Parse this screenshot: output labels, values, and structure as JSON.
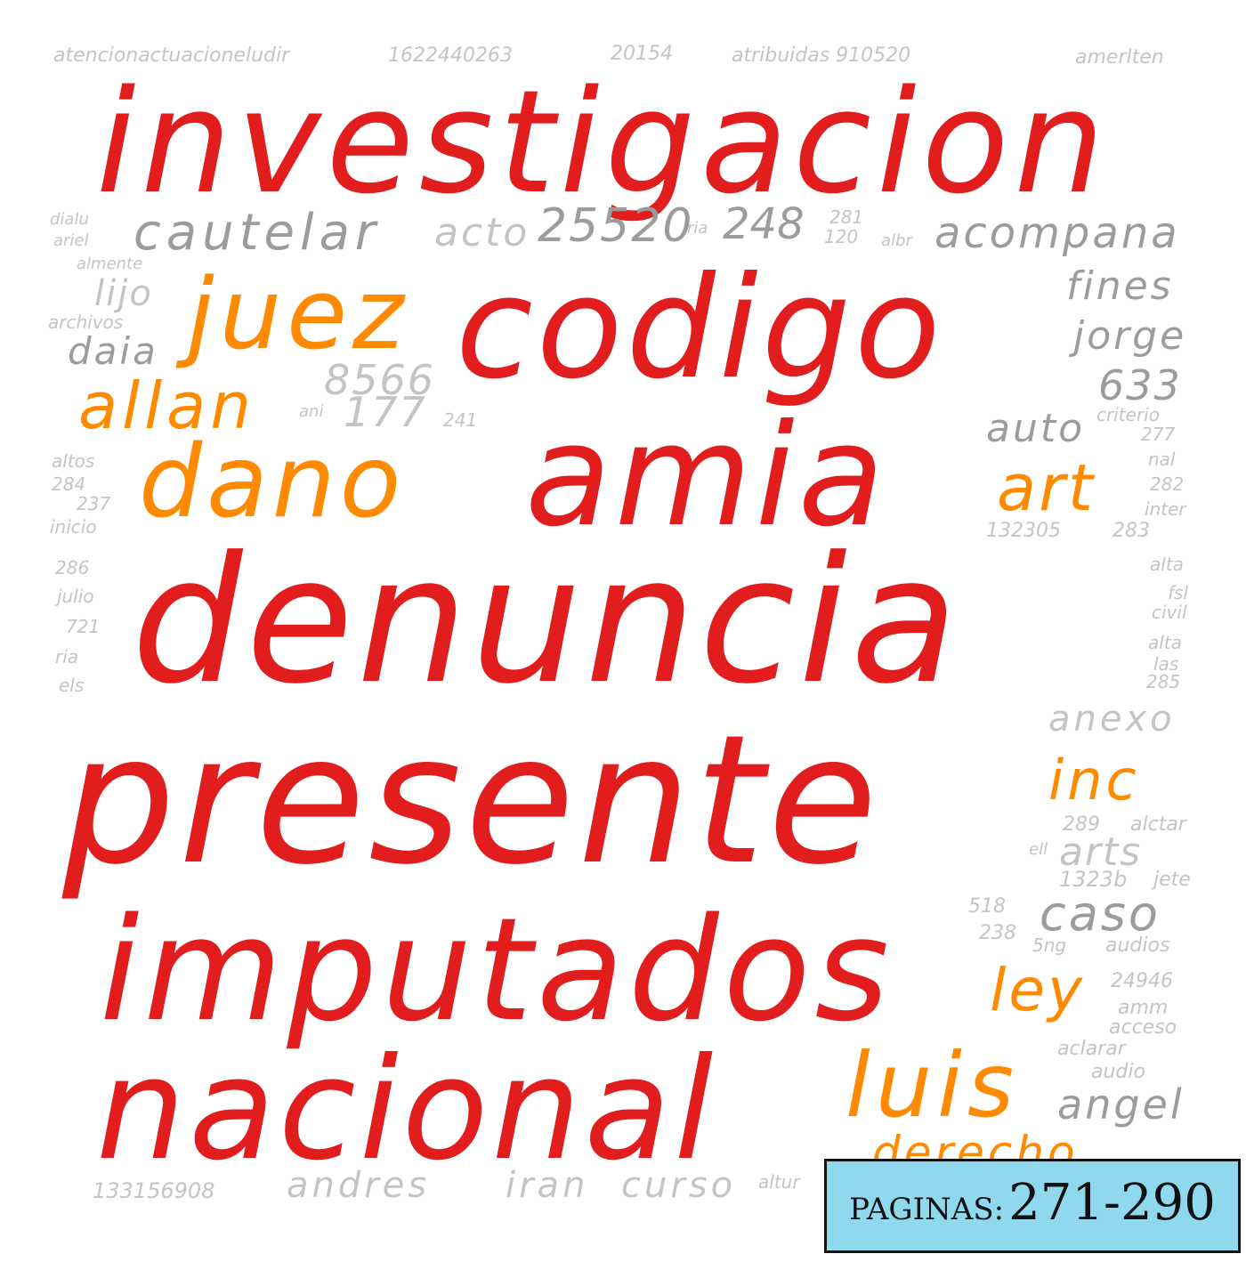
{
  "colors": {
    "primary": "#e21d1d",
    "secondary": "#ff8a00",
    "gray": "#9c9c9c",
    "light_gray": "#c4c4c4",
    "badge_bg": "#8fd8ee"
  },
  "cloud": {
    "investigacion": "investigacion",
    "codigo": "codigo",
    "amia": "amia",
    "denuncia": "denuncia",
    "presente": "presente",
    "imputados": "imputados",
    "nacional": "nacional",
    "juez": "juez",
    "allan": "allan",
    "dano": "dano",
    "art": "art",
    "inc": "inc",
    "ley": "ley",
    "luis": "luis",
    "cautelar": "cautelar",
    "acto": "acto",
    "n25520": "25520",
    "n248": "248",
    "acompana": "acompana",
    "fines": "fines",
    "jorge": "jorge",
    "n633": "633",
    "n8566": "8566",
    "n177": "177",
    "auto": "auto",
    "anexo": "anexo",
    "arts": "arts",
    "caso": "caso",
    "angel": "angel",
    "andres": "andres",
    "iran": "iran",
    "curso": "curso",
    "lijo": "lijo",
    "daia": "daia",
    "top_a": "atencionactuacioneludir",
    "top_b": "1622440263",
    "top_c": "20154",
    "top_d": "atribuidas 910520",
    "top_e": "amerlten",
    "dialu": "dialu",
    "ariel": "ariel",
    "almente": "almente",
    "archivos": "archivos",
    "ani": "ani",
    "n241": "241",
    "ria_mid": "ria",
    "n281": "281",
    "n120": "120",
    "albr": "albr",
    "criterio": "criterio",
    "n277": "277",
    "nal": "nal",
    "n282": "282",
    "inter": "inter",
    "n132305": "132305",
    "n283": "283",
    "altos": "altos",
    "n284": "284",
    "n237": "237",
    "inicio": "inicio",
    "n286": "286",
    "julio": "julio",
    "n721": "721",
    "ria_left": "ria",
    "els": "els",
    "alta1": "alta",
    "fsl": "fsl",
    "civil": "civil",
    "alta2": "alta",
    "las": "las",
    "n285": "285",
    "n289": "289",
    "aldar": "alctar",
    "ell": "ell",
    "n1323b": "1323b",
    "jete": "jete",
    "n518": "518",
    "n238": "238",
    "sng": "5ng",
    "audios": "audios",
    "n24946": "24946",
    "amm": "amm",
    "acceso": "acceso",
    "aclarar": "aclarar",
    "audio": "audio",
    "n133156908": "133156908",
    "altur": "altur",
    "derecho": "derecho"
  },
  "badge": {
    "label": "PAGINAS:",
    "range": "271-290"
  }
}
